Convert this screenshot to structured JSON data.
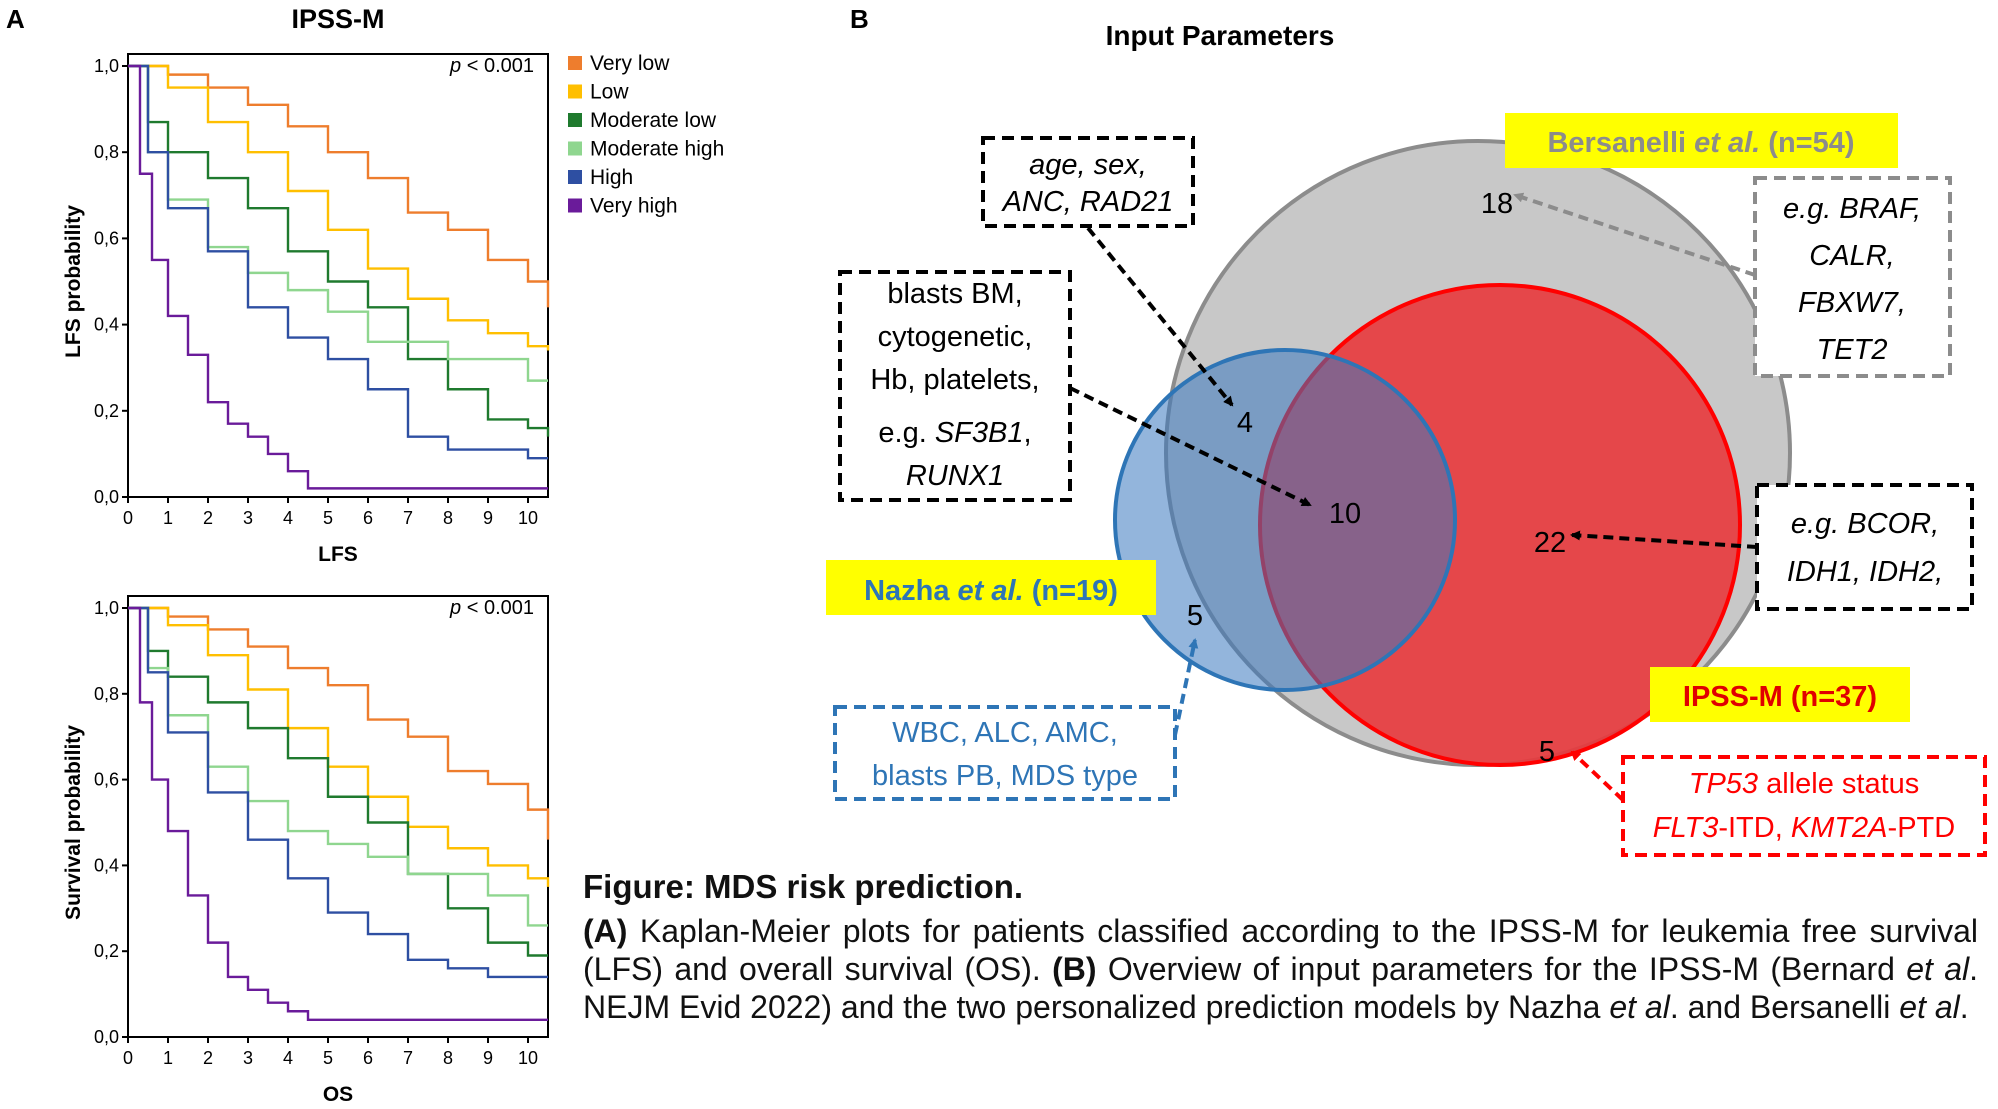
{
  "panel_labels": {
    "a": "A",
    "b": "B"
  },
  "legend": [
    {
      "label": "Very low",
      "color": "#ee7d2d"
    },
    {
      "label": "Low",
      "color": "#ffbf00"
    },
    {
      "label": "Moderate low",
      "color": "#1f7a2e"
    },
    {
      "label": "Moderate high",
      "color": "#8fd68f"
    },
    {
      "label": "High",
      "color": "#2e4fa2"
    },
    {
      "label": "Very high",
      "color": "#6a1b9a"
    }
  ],
  "chart_data": [
    {
      "type": "line",
      "title": "IPSS-M",
      "xlabel": "LFS",
      "ylabel": "LFS probability",
      "annotation": "p < 0.001",
      "xlim": [
        0,
        10.5
      ],
      "ylim": [
        0,
        1.0
      ],
      "x_ticks": [
        "0",
        "1",
        "2",
        "3",
        "4",
        "5",
        "6",
        "7",
        "8",
        "9",
        "10"
      ],
      "y_ticks": [
        "0,0",
        "0,2",
        "0,4",
        "0,6",
        "0,8",
        "1,0"
      ],
      "series": [
        {
          "name": "Very low",
          "x": [
            0,
            1,
            2,
            3,
            4,
            5,
            6,
            7,
            8,
            9,
            10,
            10.5
          ],
          "y": [
            1.0,
            0.98,
            0.95,
            0.91,
            0.86,
            0.8,
            0.74,
            0.66,
            0.62,
            0.55,
            0.5,
            0.44
          ]
        },
        {
          "name": "Low",
          "x": [
            0,
            1,
            2,
            3,
            4,
            5,
            6,
            7,
            8,
            9,
            10,
            10.5
          ],
          "y": [
            1.0,
            0.95,
            0.87,
            0.8,
            0.71,
            0.62,
            0.53,
            0.46,
            0.41,
            0.38,
            0.35,
            0.34
          ]
        },
        {
          "name": "Moderate low",
          "x": [
            0,
            0.5,
            1,
            2,
            3,
            4,
            5,
            6,
            7,
            8,
            9,
            10,
            10.5
          ],
          "y": [
            1.0,
            0.87,
            0.8,
            0.74,
            0.67,
            0.57,
            0.5,
            0.44,
            0.32,
            0.25,
            0.18,
            0.16,
            0.14
          ]
        },
        {
          "name": "Moderate high",
          "x": [
            0,
            0.5,
            1,
            2,
            3,
            4,
            5,
            6,
            7,
            8,
            9,
            10,
            10.5
          ],
          "y": [
            1.0,
            0.8,
            0.69,
            0.58,
            0.52,
            0.48,
            0.43,
            0.36,
            0.36,
            0.32,
            0.32,
            0.27,
            0.27
          ]
        },
        {
          "name": "High",
          "x": [
            0,
            0.5,
            1,
            2,
            3,
            4,
            5,
            6,
            7,
            8,
            9,
            10,
            10.5
          ],
          "y": [
            1.0,
            0.8,
            0.67,
            0.57,
            0.44,
            0.37,
            0.32,
            0.25,
            0.14,
            0.11,
            0.11,
            0.09,
            0.09
          ]
        },
        {
          "name": "Very high",
          "x": [
            0,
            0.3,
            0.6,
            1,
            1.5,
            2,
            2.5,
            3,
            3.5,
            4,
            4.5,
            10.5
          ],
          "y": [
            1.0,
            0.75,
            0.55,
            0.42,
            0.33,
            0.22,
            0.17,
            0.14,
            0.1,
            0.06,
            0.02,
            0.02
          ]
        }
      ]
    },
    {
      "type": "line",
      "title": "",
      "xlabel": "OS",
      "ylabel": "Survival probability",
      "annotation": "p < 0.001",
      "xlim": [
        0,
        10.5
      ],
      "ylim": [
        0,
        1.0
      ],
      "x_ticks": [
        "0",
        "1",
        "2",
        "3",
        "4",
        "5",
        "6",
        "7",
        "8",
        "9",
        "10"
      ],
      "y_ticks": [
        "0,0",
        "0,2",
        "0,4",
        "0,6",
        "0,8",
        "1,0"
      ],
      "series": [
        {
          "name": "Very low",
          "x": [
            0,
            1,
            2,
            3,
            4,
            5,
            6,
            7,
            8,
            9,
            10,
            10.5
          ],
          "y": [
            1.0,
            0.98,
            0.95,
            0.91,
            0.86,
            0.82,
            0.74,
            0.7,
            0.62,
            0.59,
            0.53,
            0.46
          ]
        },
        {
          "name": "Low",
          "x": [
            0,
            1,
            2,
            3,
            4,
            5,
            6,
            7,
            8,
            9,
            10,
            10.5
          ],
          "y": [
            1.0,
            0.96,
            0.89,
            0.81,
            0.72,
            0.63,
            0.56,
            0.49,
            0.44,
            0.4,
            0.37,
            0.35
          ]
        },
        {
          "name": "Moderate low",
          "x": [
            0,
            0.5,
            1,
            2,
            3,
            4,
            5,
            6,
            7,
            8,
            9,
            10,
            10.5
          ],
          "y": [
            1.0,
            0.9,
            0.84,
            0.78,
            0.72,
            0.65,
            0.56,
            0.5,
            0.38,
            0.3,
            0.22,
            0.19,
            0.19
          ]
        },
        {
          "name": "Moderate high",
          "x": [
            0,
            0.5,
            1,
            2,
            3,
            4,
            5,
            6,
            7,
            8,
            9,
            10,
            10.5
          ],
          "y": [
            1.0,
            0.86,
            0.75,
            0.63,
            0.55,
            0.48,
            0.45,
            0.42,
            0.38,
            0.38,
            0.33,
            0.26,
            0.26
          ]
        },
        {
          "name": "High",
          "x": [
            0,
            0.5,
            1,
            2,
            3,
            4,
            5,
            6,
            7,
            8,
            9,
            10,
            10.5
          ],
          "y": [
            1.0,
            0.85,
            0.71,
            0.57,
            0.46,
            0.37,
            0.29,
            0.24,
            0.18,
            0.16,
            0.14,
            0.14,
            0.14
          ]
        },
        {
          "name": "Very high",
          "x": [
            0,
            0.3,
            0.6,
            1,
            1.5,
            2,
            2.5,
            3,
            3.5,
            4,
            4.5,
            10.5
          ],
          "y": [
            1.0,
            0.78,
            0.6,
            0.48,
            0.33,
            0.22,
            0.14,
            0.11,
            0.08,
            0.06,
            0.04,
            0.04
          ]
        }
      ]
    }
  ],
  "venn": {
    "title": "Input Parameters",
    "sets": [
      {
        "name": "Bersanelli",
        "label_pre": "Bersanelli ",
        "label_em": "et al.",
        "label_post": "  (n=54)",
        "n": 54,
        "fill": "#c8c8c8",
        "stroke": "#8c8c8c",
        "text": "#8c8c8c"
      },
      {
        "name": "Nazha",
        "label_pre": "Nazha ",
        "label_em": "et al.",
        "label_post": " (n=19)",
        "n": 19,
        "fill": "#8fb3da",
        "stroke": "#2e75b6",
        "text": "#2e75b6"
      },
      {
        "name": "IPSS-M",
        "label_pre": "IPSS-M (n=37)",
        "label_em": "",
        "label_post": "",
        "n": 37,
        "fill": "#e8383c",
        "stroke": "#e8383c",
        "text": "#e00000"
      }
    ],
    "label_bg": "#ffff00",
    "counts": {
      "bersanelli_only": "18",
      "nazha_bersanelli": "4",
      "all_three": "10",
      "ipssm_bersanelli": "22",
      "nazha_only": "5",
      "ipssm_only": "5"
    },
    "boxes": {
      "age": {
        "line1": "age, sex,",
        "line2": "ANC, RAD21"
      },
      "blasts": {
        "l1": "blasts BM,",
        "l2": "cytogenetic,",
        "l3": "Hb, platelets,",
        "l4a": "e.g. ",
        "l4b": "SF3B1",
        "l4c": ",",
        "l5": "RUNX1"
      },
      "braf": {
        "l1": "e.g. BRAF,",
        "l2": "CALR,",
        "l3": "FBXW7,",
        "l4": "TET2"
      },
      "bcor": {
        "l1": "e.g. BCOR,",
        "l2": "IDH1, IDH2,"
      },
      "wbc": {
        "l1": "WBC, ALC, AMC,",
        "l2": "blasts PB, MDS type"
      },
      "tp53": {
        "l1a": "TP53",
        "l1b": " allele status",
        "l2a": "FLT3",
        "l2b": "-ITD, ",
        "l2c": "KMT2A",
        "l2d": "-PTD"
      }
    }
  },
  "caption": {
    "title": "Figure: MDS risk prediction.",
    "a_label": "(A)",
    "a_text": " Kaplan-Meier plots for patients classified according to the IPSS-M for leukemia free survival (LFS) and overall survival (OS). ",
    "b_label": "(B)",
    "b_text1": " Overview of input parameters for the IPSS-M (Bernard ",
    "et_al": "et al",
    "b_text2": ". NEJM Evid 2022) and the two personalized prediction models by Nazha ",
    "b_text3": ". and Bersanelli ",
    "b_text4": "."
  }
}
